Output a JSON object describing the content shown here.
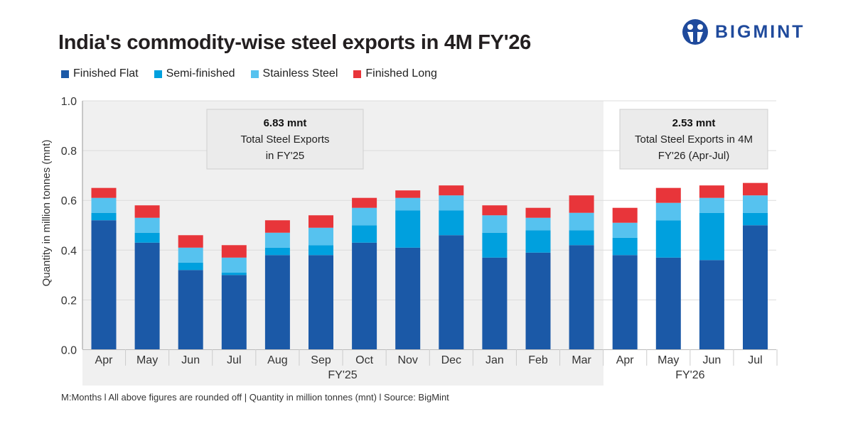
{
  "header": {
    "title": "India's commodity-wise steel exports in 4M FY'26",
    "logo_text": "BIGMINT"
  },
  "footer": "M:Months l All above figures are rounded off | Quantity in million tonnes (mnt)  l  Source: BigMint",
  "chart_data": {
    "type": "bar",
    "stacked": true,
    "title": "India's commodity-wise steel exports in 4M FY'26",
    "xlabel": "",
    "ylabel": "Quantity in million tonnes (mnt)",
    "ylim": [
      0,
      1.0
    ],
    "yticks": [
      "0.0",
      "0.2",
      "0.4",
      "0.6",
      "0.8",
      "1.0"
    ],
    "grid": true,
    "legend_position": "top-left",
    "categories": [
      "Apr",
      "May",
      "Jun",
      "Jul",
      "Aug",
      "Sep",
      "Oct",
      "Nov",
      "Dec",
      "Jan",
      "Feb",
      "Mar",
      "Apr",
      "May",
      "Jun",
      "Jul"
    ],
    "groups": [
      {
        "label": "FY'25",
        "count": 12,
        "shaded": true
      },
      {
        "label": "FY'26",
        "count": 4,
        "shaded": false
      }
    ],
    "series": [
      {
        "name": "Finished Flat",
        "color": "#1b59a7",
        "values": [
          0.52,
          0.43,
          0.32,
          0.3,
          0.38,
          0.38,
          0.43,
          0.41,
          0.46,
          0.37,
          0.39,
          0.42,
          0.38,
          0.37,
          0.36,
          0.5
        ]
      },
      {
        "name": "Semi-finished",
        "color": "#00a0de",
        "values": [
          0.03,
          0.04,
          0.03,
          0.01,
          0.03,
          0.04,
          0.07,
          0.15,
          0.1,
          0.1,
          0.09,
          0.06,
          0.07,
          0.15,
          0.19,
          0.05
        ]
      },
      {
        "name": "Stainless Steel",
        "color": "#56c2ef",
        "values": [
          0.06,
          0.06,
          0.06,
          0.06,
          0.06,
          0.07,
          0.07,
          0.05,
          0.06,
          0.07,
          0.05,
          0.07,
          0.06,
          0.07,
          0.06,
          0.07
        ]
      },
      {
        "name": "Finished Long",
        "color": "#e8353a",
        "values": [
          0.04,
          0.05,
          0.05,
          0.05,
          0.05,
          0.05,
          0.04,
          0.03,
          0.04,
          0.04,
          0.04,
          0.07,
          0.06,
          0.06,
          0.05,
          0.05
        ]
      }
    ],
    "annotations": [
      {
        "value": "6.83 mnt",
        "line1": "Total Steel Exports",
        "line2": "in FY'25"
      },
      {
        "value": "2.53 mnt",
        "line1": "Total Steel Exports in 4M",
        "line2": "FY'26 (Apr-Jul)"
      }
    ]
  }
}
